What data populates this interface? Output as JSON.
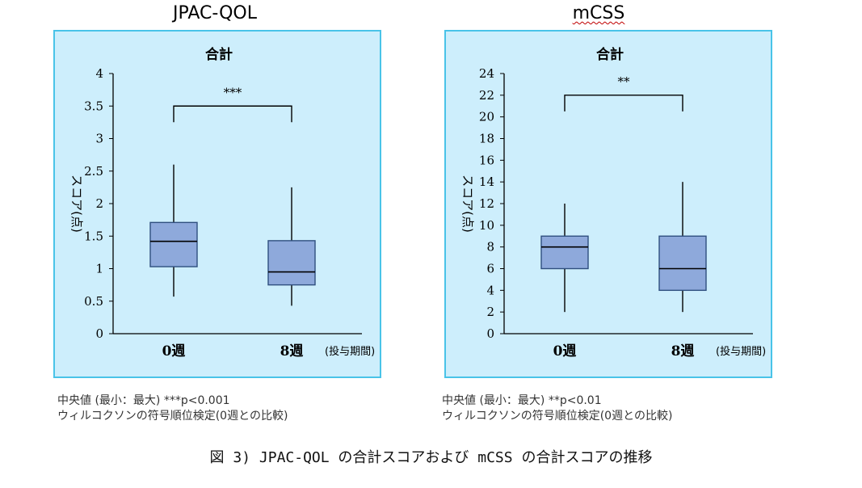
{
  "figure_caption": "図 3) JPAC-QOL の合計スコアおよび mCSS の合計スコアの推移",
  "chart_data": [
    {
      "type": "box",
      "title": "JPAC-QOL",
      "subtitle": "合計",
      "ylabel": "スコア(点)",
      "xlabel": "(投与期間)",
      "categories": [
        "0週",
        "8週"
      ],
      "ylim": [
        0,
        4
      ],
      "yticks": [
        "0",
        "0.5",
        "1",
        "1.5",
        "2",
        "2.5",
        "3",
        "3.5",
        "4"
      ],
      "boxes": [
        {
          "category": "0週",
          "min": 0.57,
          "q1": 1.03,
          "median": 1.42,
          "q3": 1.71,
          "max": 2.6
        },
        {
          "category": "8週",
          "min": 0.43,
          "q1": 0.75,
          "median": 0.95,
          "q3": 1.43,
          "max": 2.25
        }
      ],
      "significance": {
        "label": "***",
        "level": 3.5
      },
      "note_line1": "中央値 (最小：最大) ***p<0.001",
      "note_line2": "ウィルコクソンの符号順位検定(0週との比較)",
      "colors": {
        "box_fill": "#8ea9db",
        "box_stroke": "#2f4f7f",
        "panel_bg": "#cdeefc",
        "panel_border": "#49c3e8"
      }
    },
    {
      "type": "box",
      "title": "mCSS",
      "subtitle": "合計",
      "ylabel": "スコア(点)",
      "xlabel": "(投与期間)",
      "categories": [
        "0週",
        "8週"
      ],
      "ylim": [
        0,
        24
      ],
      "yticks": [
        "0",
        "2",
        "4",
        "6",
        "8",
        "10",
        "12",
        "14",
        "16",
        "18",
        "20",
        "22",
        "24"
      ],
      "boxes": [
        {
          "category": "0週",
          "min": 2,
          "q1": 6,
          "median": 8,
          "q3": 9,
          "max": 12
        },
        {
          "category": "8週",
          "min": 2,
          "q1": 4,
          "median": 6,
          "q3": 9,
          "max": 14
        }
      ],
      "significance": {
        "label": "**",
        "level": 22
      },
      "note_line1": "中央値 (最小：最大) **p<0.01",
      "note_line2": "ウィルコクソンの符号順位検定(0週との比較)",
      "colors": {
        "box_fill": "#8ea9db",
        "box_stroke": "#2f4f7f",
        "panel_bg": "#cdeefc",
        "panel_border": "#49c3e8"
      }
    }
  ]
}
